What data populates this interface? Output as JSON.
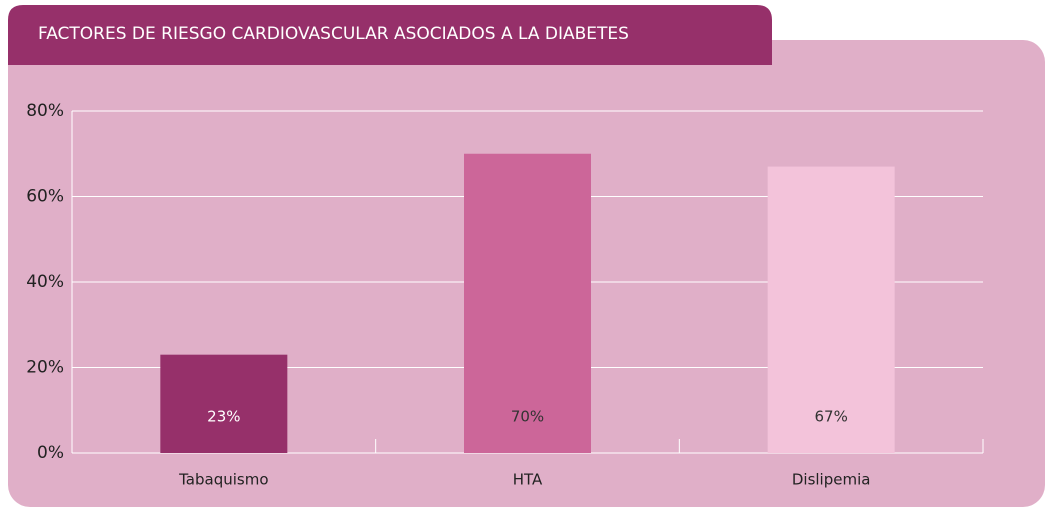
{
  "chart_data": {
    "type": "bar",
    "title": "FACTORES DE RIESGO CARDIOVASCULAR ASOCIADOS A LA DIABETES",
    "categories": [
      "Tabaquismo",
      "HTA",
      "Dislipemia"
    ],
    "values": [
      23,
      70,
      67
    ],
    "value_labels": [
      "23%",
      "70%",
      "67%"
    ],
    "colors": [
      "#96306a",
      "#cc6699",
      "#f3c3da"
    ],
    "ylim": [
      0,
      80
    ],
    "yticks": [
      {
        "value": 0,
        "label": "0%"
      },
      {
        "value": 20,
        "label": "20%"
      },
      {
        "value": 40,
        "label": "40%"
      },
      {
        "value": 60,
        "label": "60%"
      },
      {
        "value": 80,
        "label": "80%"
      }
    ],
    "grid": true
  }
}
